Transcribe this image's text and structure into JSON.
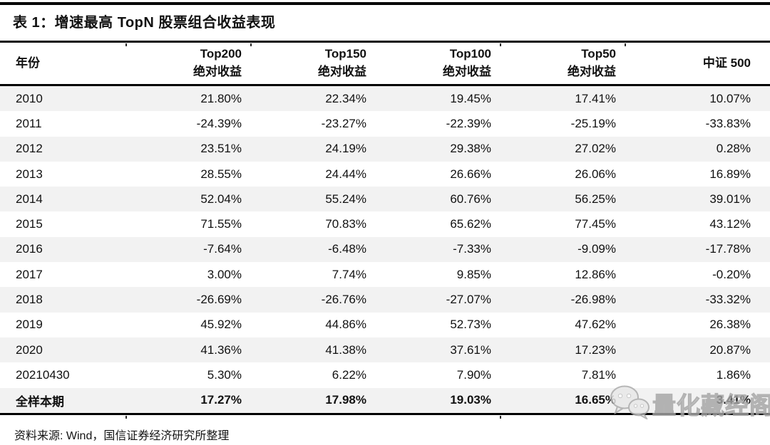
{
  "title": "表 1：增速最高 TopN 股票组合收益表现",
  "table": {
    "columns": [
      {
        "label": "年份",
        "sublabel": ""
      },
      {
        "label": "Top200",
        "sublabel": "绝对收益"
      },
      {
        "label": "Top150",
        "sublabel": "绝对收益"
      },
      {
        "label": "Top100",
        "sublabel": "绝对收益"
      },
      {
        "label": "Top50",
        "sublabel": "绝对收益"
      },
      {
        "label": "中证 500",
        "sublabel": ""
      }
    ],
    "rows": [
      {
        "year": "2010",
        "values": [
          "21.80%",
          "22.34%",
          "19.45%",
          "17.41%",
          "10.07%"
        ],
        "bold": false
      },
      {
        "year": "2011",
        "values": [
          "-24.39%",
          "-23.27%",
          "-22.39%",
          "-25.19%",
          "-33.83%"
        ],
        "bold": false
      },
      {
        "year": "2012",
        "values": [
          "23.51%",
          "24.19%",
          "29.38%",
          "27.02%",
          "0.28%"
        ],
        "bold": false
      },
      {
        "year": "2013",
        "values": [
          "28.55%",
          "24.44%",
          "26.66%",
          "26.06%",
          "16.89%"
        ],
        "bold": false
      },
      {
        "year": "2014",
        "values": [
          "52.04%",
          "55.24%",
          "60.76%",
          "56.25%",
          "39.01%"
        ],
        "bold": false
      },
      {
        "year": "2015",
        "values": [
          "71.55%",
          "70.83%",
          "65.62%",
          "77.45%",
          "43.12%"
        ],
        "bold": false
      },
      {
        "year": "2016",
        "values": [
          "-7.64%",
          "-6.48%",
          "-7.33%",
          "-9.09%",
          "-17.78%"
        ],
        "bold": false
      },
      {
        "year": "2017",
        "values": [
          "3.00%",
          "7.74%",
          "9.85%",
          "12.86%",
          "-0.20%"
        ],
        "bold": false
      },
      {
        "year": "2018",
        "values": [
          "-26.69%",
          "-26.76%",
          "-27.07%",
          "-26.98%",
          "-33.32%"
        ],
        "bold": false
      },
      {
        "year": "2019",
        "values": [
          "45.92%",
          "44.86%",
          "52.73%",
          "47.62%",
          "26.38%"
        ],
        "bold": false
      },
      {
        "year": "2020",
        "values": [
          "41.36%",
          "41.38%",
          "37.61%",
          "17.23%",
          "20.87%"
        ],
        "bold": false
      },
      {
        "year": "20210430",
        "values": [
          "5.30%",
          "6.22%",
          "7.90%",
          "7.81%",
          "1.86%"
        ],
        "bold": false
      },
      {
        "year": "全样本期",
        "values": [
          "17.27%",
          "17.98%",
          "19.03%",
          "16.65%",
          "3.41%"
        ],
        "bold": true
      }
    ]
  },
  "footer": {
    "source": "资料来源: Wind，国信证券经济研究所整理"
  },
  "watermark": {
    "text": "量化藏经阁",
    "icon": "wechat-icon"
  },
  "colors": {
    "stripe": "#f2f2f2",
    "rule": "#000000",
    "text": "#111111",
    "watermark_text": "#c7c7c7"
  },
  "chart_data": {
    "type": "table",
    "title": "表 1：增速最高 TopN 股票组合收益表现",
    "columns": [
      "年份",
      "Top200 绝对收益",
      "Top150 绝对收益",
      "Top100 绝对收益",
      "Top50 绝对收益",
      "中证 500"
    ],
    "rows": [
      [
        "2010",
        "21.80%",
        "22.34%",
        "19.45%",
        "17.41%",
        "10.07%"
      ],
      [
        "2011",
        "-24.39%",
        "-23.27%",
        "-22.39%",
        "-25.19%",
        "-33.83%"
      ],
      [
        "2012",
        "23.51%",
        "24.19%",
        "29.38%",
        "27.02%",
        "0.28%"
      ],
      [
        "2013",
        "28.55%",
        "24.44%",
        "26.66%",
        "26.06%",
        "16.89%"
      ],
      [
        "2014",
        "52.04%",
        "55.24%",
        "60.76%",
        "56.25%",
        "39.01%"
      ],
      [
        "2015",
        "71.55%",
        "70.83%",
        "65.62%",
        "77.45%",
        "43.12%"
      ],
      [
        "2016",
        "-7.64%",
        "-6.48%",
        "-7.33%",
        "-9.09%",
        "-17.78%"
      ],
      [
        "2017",
        "3.00%",
        "7.74%",
        "9.85%",
        "12.86%",
        "-0.20%"
      ],
      [
        "2018",
        "-26.69%",
        "-26.76%",
        "-27.07%",
        "-26.98%",
        "-33.32%"
      ],
      [
        "2019",
        "45.92%",
        "44.86%",
        "52.73%",
        "47.62%",
        "26.38%"
      ],
      [
        "2020",
        "41.36%",
        "41.38%",
        "37.61%",
        "17.23%",
        "20.87%"
      ],
      [
        "20210430",
        "5.30%",
        "6.22%",
        "7.90%",
        "7.81%",
        "1.86%"
      ],
      [
        "全样本期",
        "17.27%",
        "17.98%",
        "19.03%",
        "16.65%",
        "3.41%"
      ]
    ],
    "source": "资料来源: Wind，国信证券经济研究所整理",
    "layout_hints": {
      "zebra_striping": true,
      "bold_last_row": true,
      "value_alignment": "right"
    }
  }
}
